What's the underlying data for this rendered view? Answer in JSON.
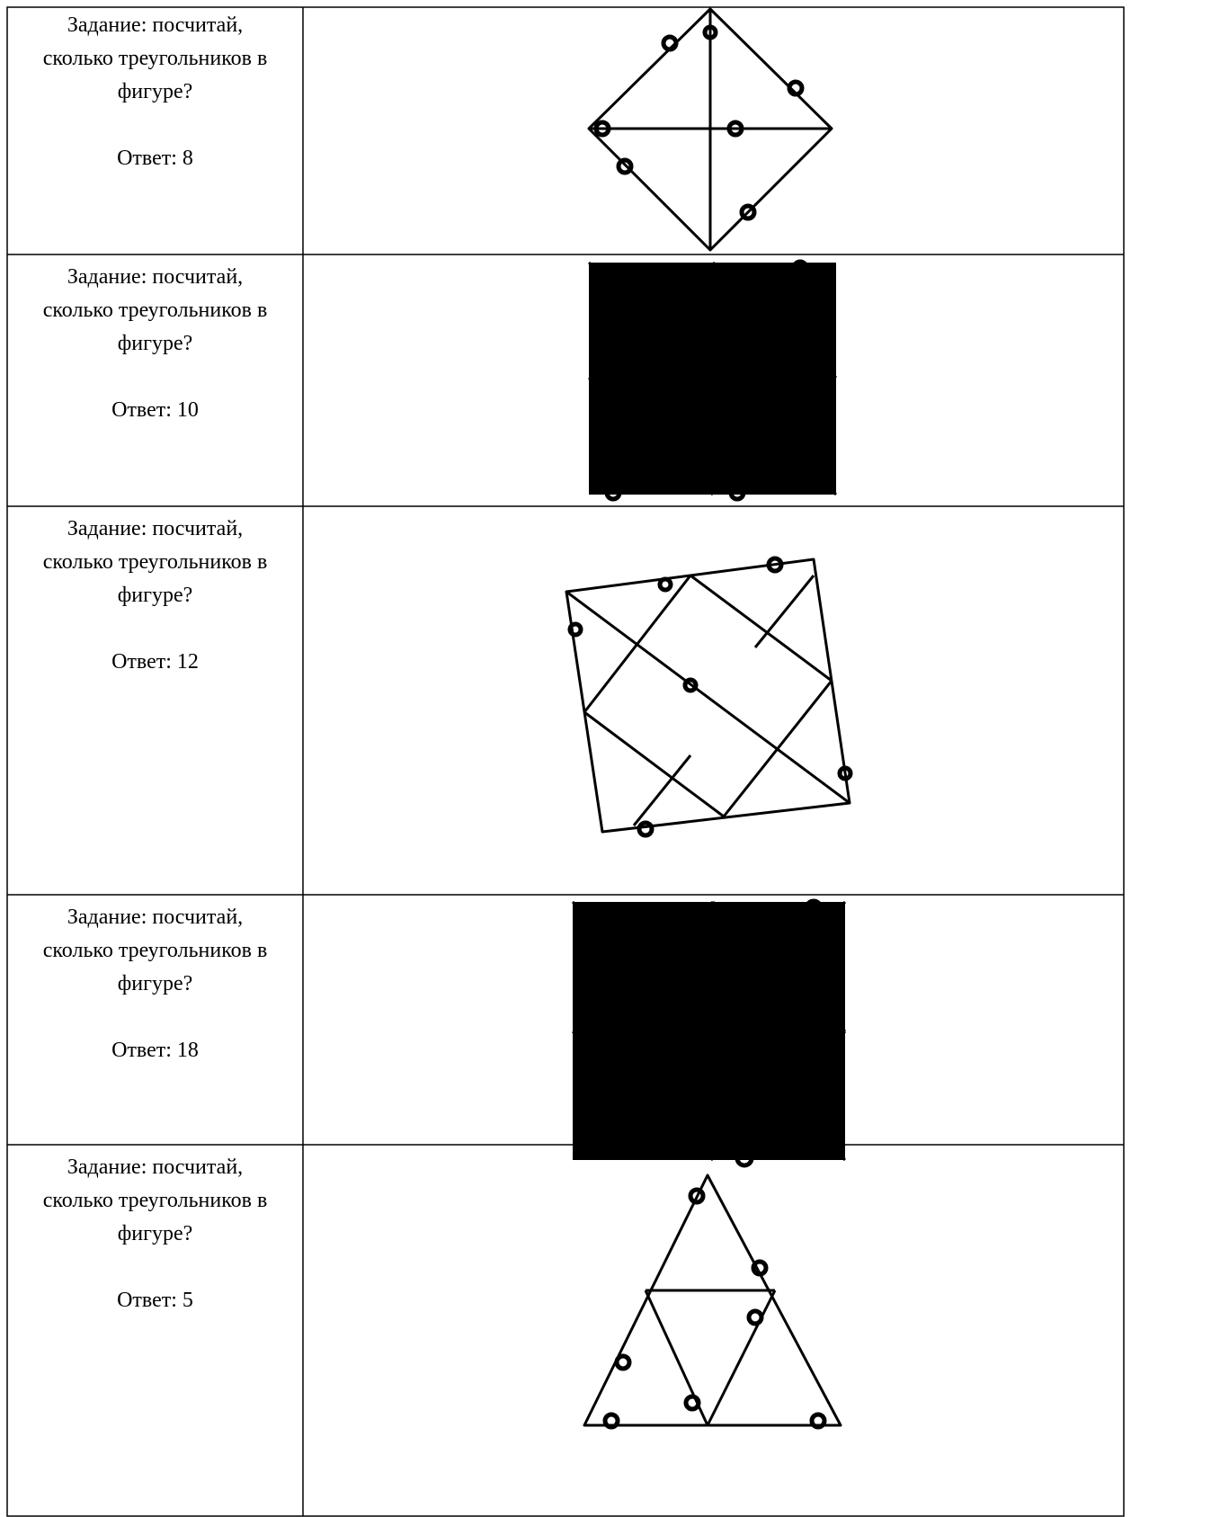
{
  "table": {
    "rows": [
      {
        "task": "Задание: посчитай, сколько треугольников в фигуре?",
        "answer": "Ответ: 8"
      },
      {
        "task": "Задание: посчитай, сколько треугольников в фигуре?",
        "answer": "Ответ: 10"
      },
      {
        "task": "Задание: посчитай, сколько треугольников в фигуре?",
        "answer": "Ответ: 12"
      },
      {
        "task": "Задание: посчитай, сколько треугольников в фигуре?",
        "answer": "Ответ: 18"
      },
      {
        "task": "Задание: посчитай, сколько треугольников в фигуре?",
        "answer": "Ответ: 5"
      }
    ]
  }
}
